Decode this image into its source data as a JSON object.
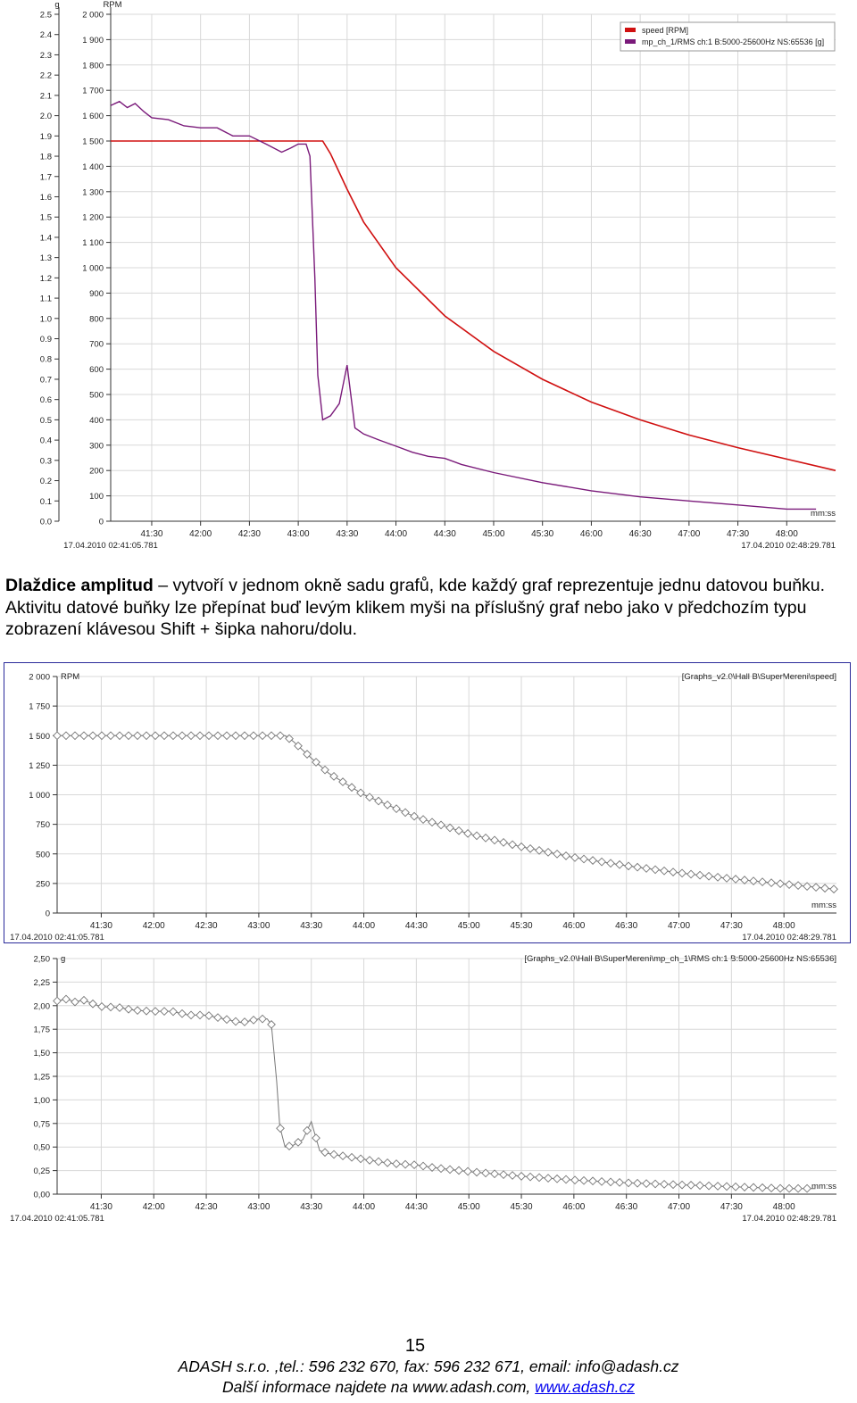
{
  "paragraph": {
    "bold": "Dlaždice amplitud",
    "text": " – vytvoří v jednom okně sadu grafů, kde každý graf reprezentuje jednu datovou buňku. Aktivitu datové buňky lze přepínat buď levým klikem myši na příslušný graf nebo jako v předchozím typu zobrazení klávesou Shift + šipka nahoru/dolu."
  },
  "footer": {
    "page_number": "15",
    "line1": "ADASH s.r.o. ,tel.: 596 232 670, fax: 596 232 671, email: info@adash.cz",
    "line2_prefix": "Další informace najdete na  www.adash.com, ",
    "line2_link": "www.adash.cz"
  },
  "colors": {
    "speed": "#d01010",
    "rms": "#7a1a7a",
    "grid": "#d8d8d8",
    "line_gray": "#777777"
  },
  "chart_data": [
    {
      "type": "line",
      "y2label": "RPM",
      "y1label": "g",
      "xlabel": "mm:ss",
      "start_time": "17.04.2010 02:41:05.781",
      "end_time": "17.04.2010 02:48:29.781",
      "legend_placement": "top-right",
      "xlim": [
        41.08,
        48.5
      ],
      "ylim_rpm": [
        0,
        2000
      ],
      "ylim_g": [
        0,
        2.5
      ],
      "x_ticks": [
        "41:30",
        "42:00",
        "42:30",
        "43:00",
        "43:30",
        "44:00",
        "44:30",
        "45:00",
        "45:30",
        "46:00",
        "46:30",
        "47:00",
        "47:30",
        "48:00"
      ],
      "x_tick_values": [
        41.5,
        42.0,
        42.5,
        43.0,
        43.5,
        44.0,
        44.5,
        45.0,
        45.5,
        46.0,
        46.5,
        47.0,
        47.5,
        48.0
      ],
      "rpm_ticks": [
        "0",
        "100",
        "200",
        "300",
        "400",
        "500",
        "600",
        "700",
        "800",
        "900",
        "1 000",
        "1 100",
        "1 200",
        "1 300",
        "1 400",
        "1 500",
        "1 600",
        "1 700",
        "1 800",
        "1 900",
        "2 000"
      ],
      "g_ticks": [
        "0.0",
        "0.1",
        "0.2",
        "0.3",
        "0.4",
        "0.5",
        "0.6",
        "0.7",
        "0.8",
        "0.9",
        "1.0",
        "1.1",
        "1.2",
        "1.3",
        "1.4",
        "1.5",
        "1.6",
        "1.7",
        "1.8",
        "1.9",
        "2.0",
        "2.1",
        "2.2",
        "2.3",
        "2.4",
        "2.5"
      ],
      "series": [
        {
          "name": "speed [RPM]",
          "axis": "rpm",
          "x": [
            41.08,
            43.25,
            43.33,
            43.5,
            43.67,
            44.0,
            44.5,
            45.0,
            45.5,
            46.0,
            46.5,
            47.0,
            47.5,
            48.0,
            48.5
          ],
          "y": [
            1500,
            1500,
            1450,
            1310,
            1180,
            1000,
            810,
            670,
            560,
            470,
            400,
            340,
            290,
            245,
            200
          ]
        },
        {
          "name": "mp_ch_1/RMS ch:1 B:5000-25600Hz NS:65536 [g]",
          "axis": "g",
          "x": [
            41.08,
            41.17,
            41.25,
            41.33,
            41.42,
            41.5,
            41.67,
            41.83,
            42.0,
            42.17,
            42.33,
            42.5,
            42.67,
            42.83,
            42.92,
            43.0,
            43.08,
            43.12,
            43.17,
            43.2,
            43.25,
            43.33,
            43.42,
            43.5,
            43.58,
            43.67,
            43.83,
            44.0,
            44.17,
            44.33,
            44.5,
            44.67,
            45.0,
            45.5,
            46.0,
            46.5,
            47.0,
            47.5,
            48.0,
            48.3
          ],
          "y": [
            2.05,
            2.07,
            2.04,
            2.06,
            2.02,
            1.99,
            1.98,
            1.95,
            1.94,
            1.94,
            1.9,
            1.9,
            1.86,
            1.82,
            1.84,
            1.86,
            1.86,
            1.8,
            1.2,
            0.72,
            0.5,
            0.52,
            0.58,
            0.77,
            0.46,
            0.43,
            0.4,
            0.37,
            0.34,
            0.32,
            0.31,
            0.28,
            0.24,
            0.19,
            0.15,
            0.12,
            0.1,
            0.08,
            0.06,
            0.06
          ]
        }
      ]
    },
    {
      "type": "line",
      "ylabel": "RPM",
      "title": "[Graphs_v2.0\\Hall B\\SuperMereni\\speed]",
      "xlabel": "mm:ss",
      "start_time": "17.04.2010 02:41:05.781",
      "end_time": "17.04.2010 02:48:29.781",
      "xlim": [
        41.08,
        48.5
      ],
      "ylim": [
        0,
        2000
      ],
      "y_ticks": [
        "0",
        "250",
        "500",
        "750",
        "1 000",
        "1 250",
        "1 500",
        "1 750",
        "2 000"
      ],
      "x_ticks": [
        "41:30",
        "42:00",
        "42:30",
        "43:00",
        "43:30",
        "44:00",
        "44:30",
        "45:00",
        "45:30",
        "46:00",
        "46:30",
        "47:00",
        "47:30",
        "48:00"
      ],
      "x_tick_values": [
        41.5,
        42.0,
        42.5,
        43.0,
        43.5,
        44.0,
        44.5,
        45.0,
        45.5,
        46.0,
        46.5,
        47.0,
        47.5,
        48.0
      ],
      "series": [
        {
          "name": "speed",
          "x": [
            41.08,
            43.25,
            43.33,
            43.5,
            43.67,
            44.0,
            44.5,
            45.0,
            45.5,
            46.0,
            46.5,
            47.0,
            47.5,
            48.0,
            48.5
          ],
          "y": [
            1500,
            1500,
            1450,
            1310,
            1180,
            1000,
            810,
            670,
            560,
            470,
            400,
            340,
            290,
            245,
            200
          ]
        }
      ]
    },
    {
      "type": "line",
      "ylabel": "g",
      "title": "[Graphs_v2.0\\Hall B\\SuperMereni\\mp_ch_1\\RMS ch:1 B:5000-25600Hz NS:65536]",
      "xlabel": "mm:ss",
      "start_time": "17.04.2010 02:41:05.781",
      "end_time": "17.04.2010 02:48:29.781",
      "xlim": [
        41.08,
        48.5
      ],
      "ylim": [
        0,
        2.5
      ],
      "y_ticks": [
        "0,00",
        "0,25",
        "0,50",
        "0,75",
        "1,00",
        "1,25",
        "1,50",
        "1,75",
        "2,00",
        "2,25",
        "2,50"
      ],
      "x_ticks": [
        "41:30",
        "42:00",
        "42:30",
        "43:00",
        "43:30",
        "44:00",
        "44:30",
        "45:00",
        "45:30",
        "46:00",
        "46:30",
        "47:00",
        "47:30",
        "48:00"
      ],
      "x_tick_values": [
        41.5,
        42.0,
        42.5,
        43.0,
        43.5,
        44.0,
        44.5,
        45.0,
        45.5,
        46.0,
        46.5,
        47.0,
        47.5,
        48.0
      ],
      "series": [
        {
          "name": "RMS",
          "x": [
            41.08,
            41.17,
            41.25,
            41.33,
            41.42,
            41.5,
            41.67,
            41.83,
            42.0,
            42.17,
            42.33,
            42.5,
            42.67,
            42.83,
            42.92,
            43.0,
            43.08,
            43.12,
            43.17,
            43.2,
            43.25,
            43.33,
            43.42,
            43.5,
            43.58,
            43.67,
            43.83,
            44.0,
            44.17,
            44.33,
            44.5,
            44.67,
            45.0,
            45.5,
            46.0,
            46.5,
            47.0,
            47.5,
            48.0,
            48.3
          ],
          "y": [
            2.05,
            2.07,
            2.04,
            2.06,
            2.02,
            1.99,
            1.98,
            1.95,
            1.94,
            1.94,
            1.9,
            1.9,
            1.86,
            1.82,
            1.84,
            1.86,
            1.86,
            1.8,
            1.2,
            0.72,
            0.5,
            0.52,
            0.58,
            0.77,
            0.46,
            0.43,
            0.4,
            0.37,
            0.34,
            0.32,
            0.31,
            0.28,
            0.24,
            0.19,
            0.15,
            0.12,
            0.1,
            0.08,
            0.06,
            0.06
          ]
        }
      ]
    }
  ]
}
